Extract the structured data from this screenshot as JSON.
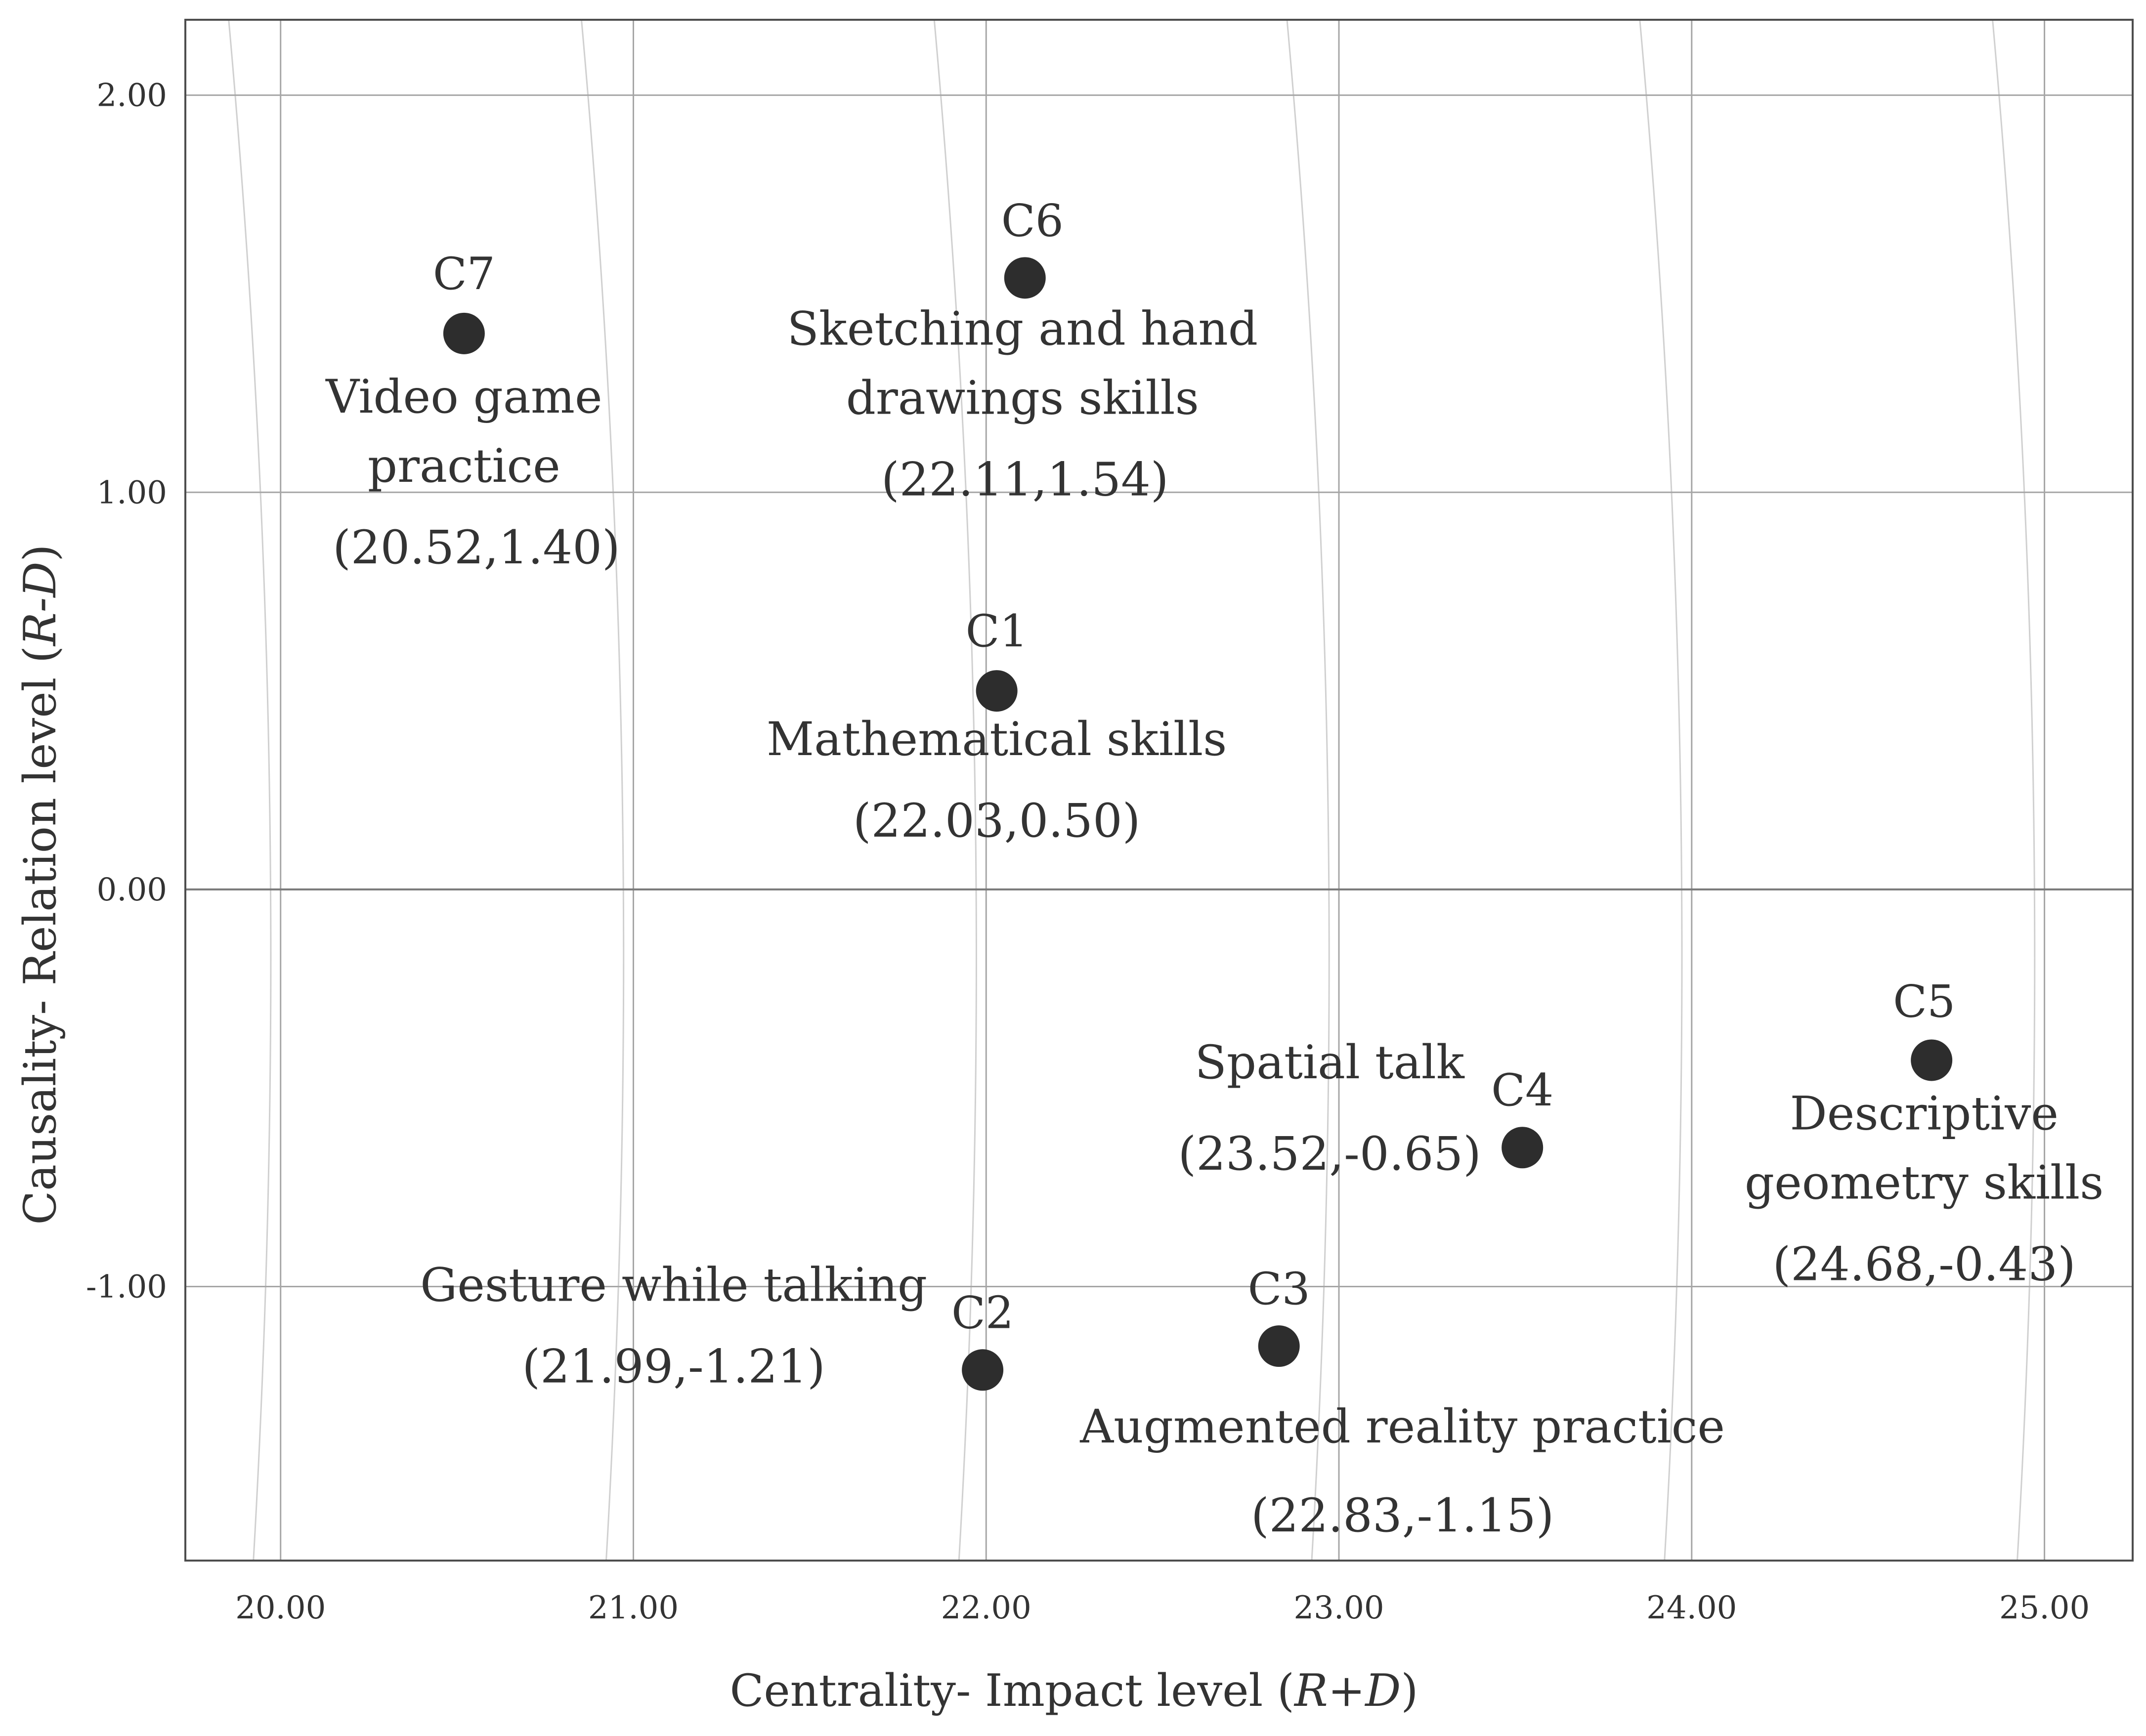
{
  "chart_data": {
    "type": "scatter",
    "title": "",
    "xlabel": {
      "prefix": "Centrality- Impact level (",
      "var": "R+D",
      "suffix": ")"
    },
    "ylabel": {
      "prefix": "Causality- Relation level (",
      "var": "R-D",
      "suffix": ")"
    },
    "xlim": [
      19.73,
      25.25
    ],
    "ylim": [
      -1.69,
      2.19
    ],
    "x_ticks": [
      20,
      21,
      22,
      23,
      24,
      25
    ],
    "x_tick_labels": [
      "20.00",
      "21.00",
      "22.00",
      "23.00",
      "24.00",
      "25.00"
    ],
    "y_ticks": [
      -1,
      0,
      1,
      2
    ],
    "y_tick_labels": [
      "-1.00",
      "0.00",
      "1.00",
      "2.00"
    ],
    "grid": true,
    "colors": {
      "point": "#2d2d2d",
      "grid": "#a6a6a6",
      "zero_line": "#7a7a7a",
      "curve": "#d0d0d0",
      "text": "#333333",
      "frame": "#4d4d4d"
    },
    "points": [
      {
        "id": "C7",
        "x": 20.52,
        "y": 1.4,
        "label_lines": [
          "Video game",
          "practice"
        ],
        "coord_text": "(20.52,1.40)"
      },
      {
        "id": "C6",
        "x": 22.11,
        "y": 1.54,
        "label_lines": [
          "Sketching and hand",
          "drawings skills"
        ],
        "coord_text": "(22.11,1.54)"
      },
      {
        "id": "C1",
        "x": 22.03,
        "y": 0.5,
        "label_lines": [
          "Mathematical skills"
        ],
        "coord_text": "(22.03,0.50)"
      },
      {
        "id": "C5",
        "x": 24.68,
        "y": -0.43,
        "label_lines": [
          "Descriptive",
          "geometry skills"
        ],
        "coord_text": "(24.68,-0.43)"
      },
      {
        "id": "C4",
        "x": 23.52,
        "y": -0.65,
        "label_lines": [
          "Spatial talk"
        ],
        "coord_text": "(23.52,-0.65)"
      },
      {
        "id": "C3",
        "x": 22.83,
        "y": -1.15,
        "label_lines": [
          "Augmented reality practice"
        ],
        "coord_text": "(22.83,-1.15)"
      },
      {
        "id": "C2",
        "x": 21.99,
        "y": -1.21,
        "label_lines": [
          "Gesture while talking"
        ],
        "coord_text": "(21.99,-1.21)"
      }
    ]
  }
}
